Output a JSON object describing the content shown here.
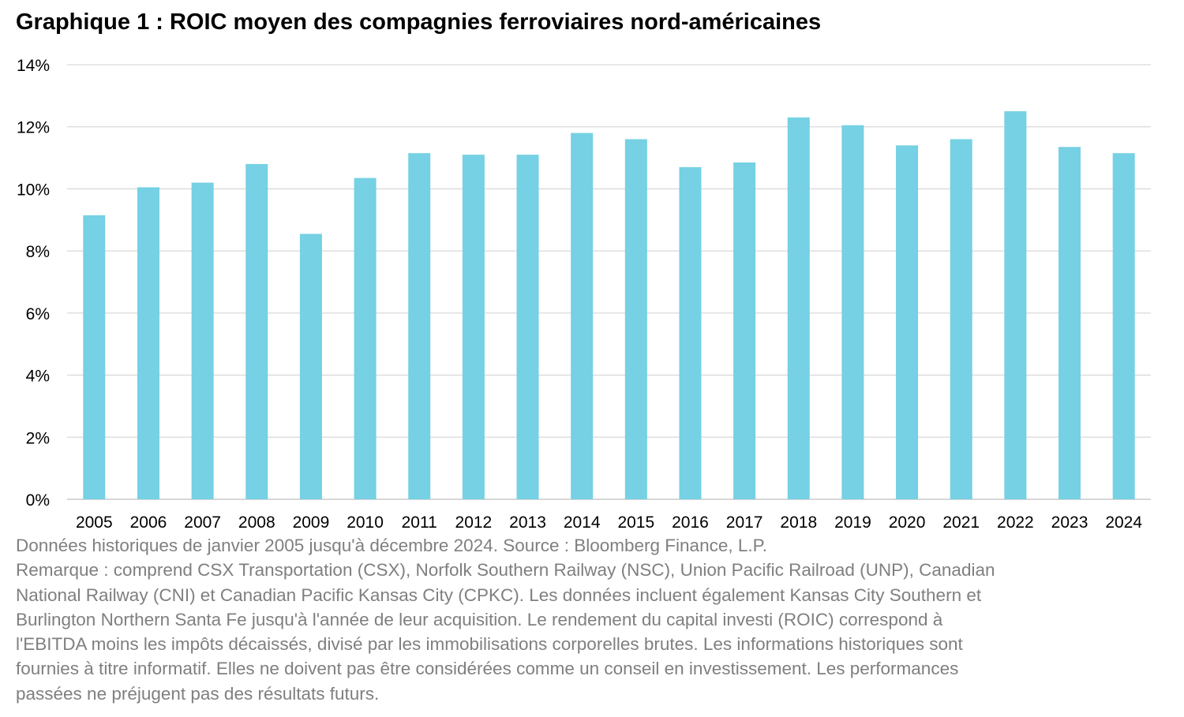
{
  "chart_data": {
    "type": "bar",
    "title": "Graphique 1 : ROIC moyen des compagnies ferroviaires nord-américaines",
    "xlabel": "",
    "ylabel": "",
    "ylim": [
      0,
      14
    ],
    "yticks": [
      0,
      2,
      4,
      6,
      8,
      10,
      12,
      14
    ],
    "ytick_labels": [
      "0%",
      "2%",
      "4%",
      "6%",
      "8%",
      "10%",
      "12%",
      "14%"
    ],
    "grid": true,
    "categories": [
      "2005",
      "2006",
      "2007",
      "2008",
      "2009",
      "2010",
      "2011",
      "2012",
      "2013",
      "2014",
      "2015",
      "2016",
      "2017",
      "2018",
      "2019",
      "2020",
      "2021",
      "2022",
      "2023",
      "2024"
    ],
    "values": [
      9.15,
      10.05,
      10.2,
      10.8,
      8.55,
      10.35,
      11.15,
      11.1,
      11.1,
      11.8,
      11.6,
      10.7,
      10.85,
      12.3,
      12.05,
      11.4,
      11.6,
      12.5,
      11.35,
      11.15
    ],
    "unit": "%",
    "bar_color": "#75D1E3"
  },
  "notes": [
    "Données historiques de janvier 2005 jusqu'à décembre 2024. Source : Bloomberg Finance, L.P.",
    "Remarque : comprend CSX Transportation (CSX), Norfolk Southern Railway (NSC), Union Pacific Railroad (UNP), Canadian",
    "National Railway (CNI) et Canadian Pacific Kansas City (CPKC). Les données incluent également Kansas City Southern et",
    "Burlington Northern Santa Fe jusqu'à l'année de leur acquisition. Le rendement du capital investi (ROIC) correspond à",
    "l'EBITDA moins les impôts décaissés, divisé par les immobilisations corporelles brutes. Les informations historiques sont",
    "fournies à titre informatif. Elles ne doivent pas être considérées comme un conseil en investissement. Les performances",
    "passées ne préjugent pas des résultats futurs."
  ]
}
